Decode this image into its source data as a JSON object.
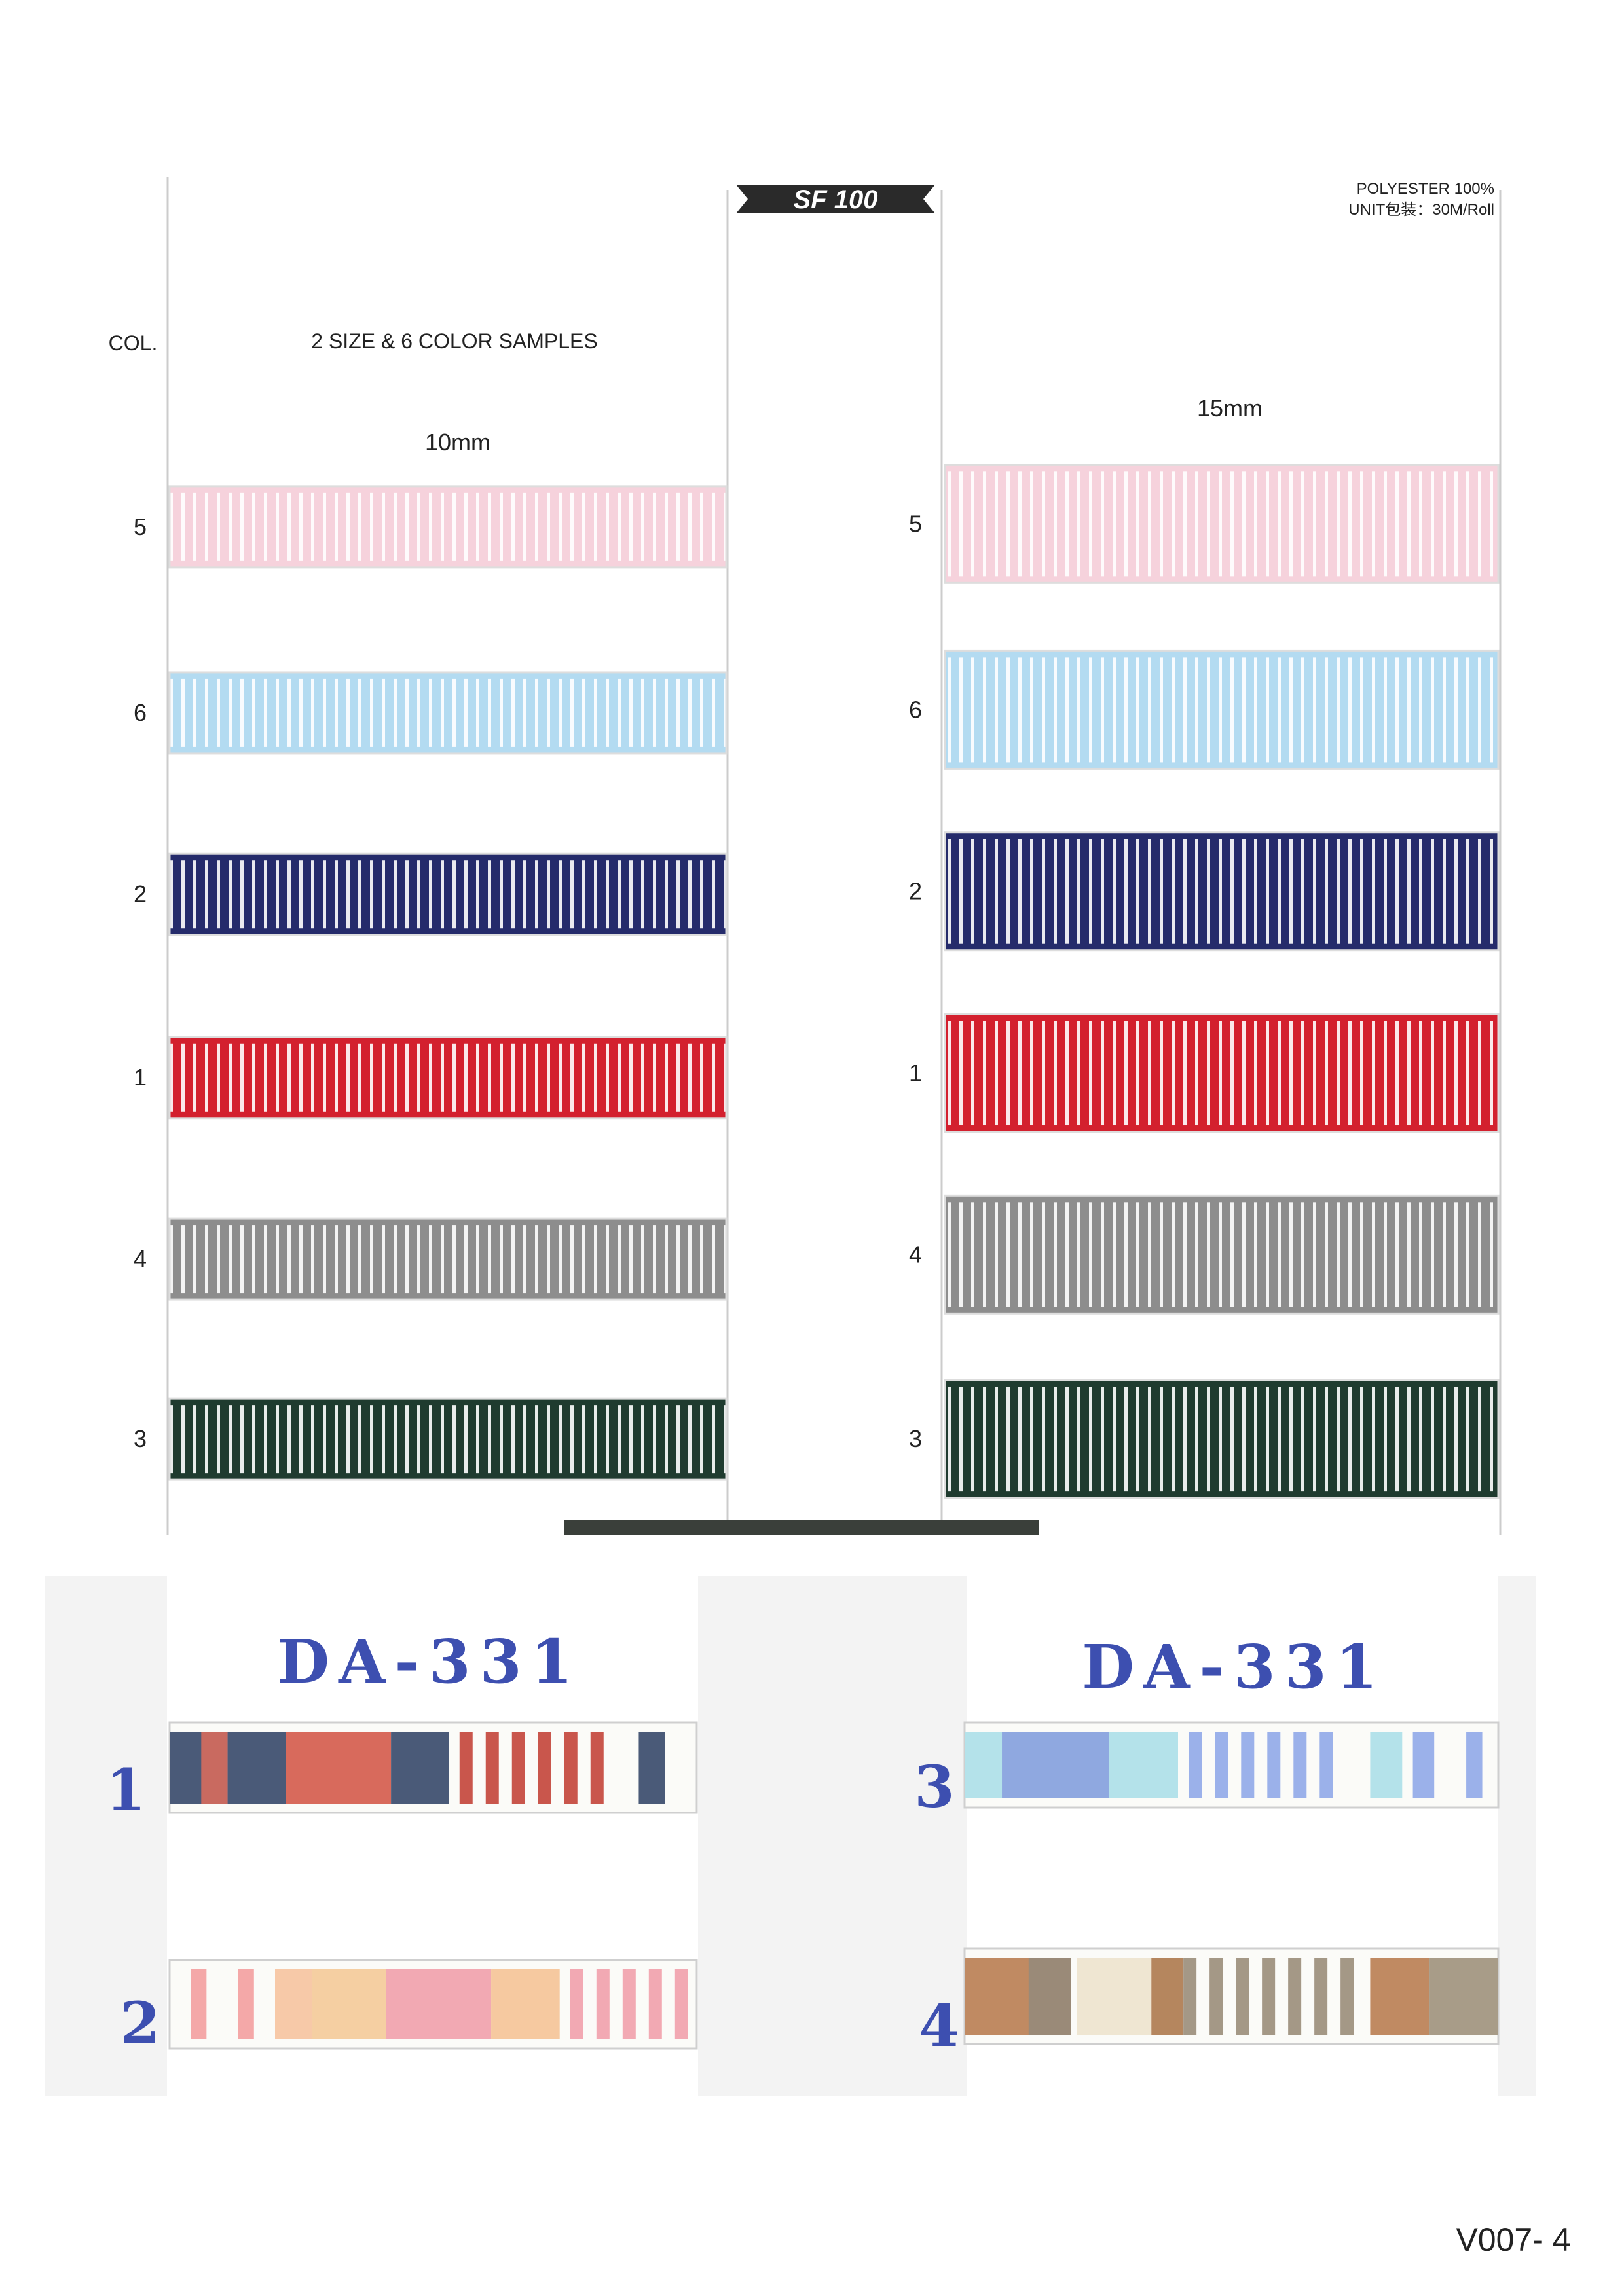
{
  "header": {
    "code": "SF 100",
    "material": "POLYESTER 100%",
    "unit": "UNIT包装：30M/Roll"
  },
  "col_label": "COL.",
  "samples_label": "2 SIZE & 6 COLOR SAMPLES",
  "sizes": [
    "10mm",
    "15mm"
  ],
  "colors": [
    "5",
    "6",
    "2",
    "1",
    "4",
    "3"
  ],
  "lower": {
    "panels": [
      {
        "title": "DA-331",
        "numbers": [
          "1",
          "2"
        ]
      },
      {
        "title": "DA-331",
        "numbers": [
          "3",
          "4"
        ]
      }
    ]
  },
  "footer": "V007- 4"
}
